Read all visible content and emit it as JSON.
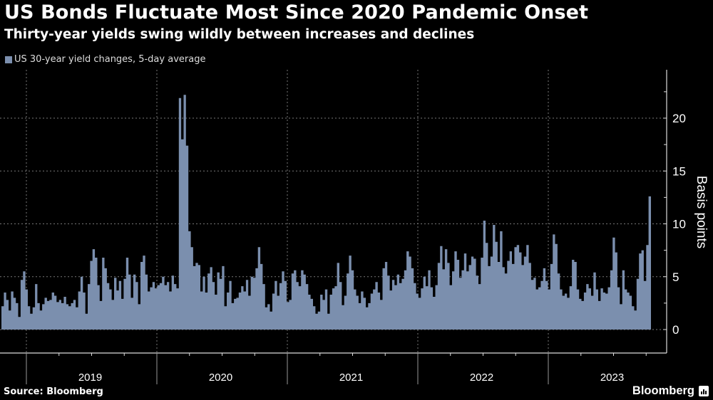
{
  "header": {
    "title": "US Bonds Fluctuate Most Since 2020 Pandemic Onset",
    "subtitle": "Thirty-year yields swing wildly between increases and declines"
  },
  "legend": {
    "label": "US 30-year yield changes, 5-day average",
    "color": "#7b8fae"
  },
  "footer": {
    "source": "Source: Bloomberg",
    "brand": "Bloomberg"
  },
  "chart_data": {
    "type": "area",
    "title": "US Bonds Fluctuate Most Since 2020 Pandemic Onset",
    "subtitle": "Thirty-year yields swing wildly between increases and declines",
    "xlabel": "",
    "ylabel": "Basis points",
    "y_axis_position": "right",
    "ylim": [
      -2.2,
      24.5
    ],
    "yticks": [
      0,
      5,
      10,
      15,
      20
    ],
    "xticks": [
      "2019",
      "2020",
      "2021",
      "2022",
      "2023"
    ],
    "grid": true,
    "legend_position": "top-left",
    "series": [
      {
        "name": "US 30-year yield changes, 5-day average",
        "color": "#7b8fae",
        "x_start": "2018-11",
        "x_end": "2023-10",
        "sampling": "approx. weekly (traced from figure)",
        "values": [
          2.2,
          3.5,
          2.8,
          1.8,
          3.6,
          3.0,
          2.5,
          1.2,
          4.7,
          5.5,
          3.8,
          2.2,
          1.5,
          2.1,
          4.3,
          2.5,
          1.8,
          2.4,
          3.0,
          2.7,
          2.8,
          3.5,
          3.2,
          2.6,
          2.8,
          2.5,
          3.1,
          2.4,
          2.2,
          2.5,
          2.8,
          2.1,
          3.6,
          5.0,
          3.5,
          1.5,
          4.3,
          6.5,
          7.6,
          6.8,
          4.2,
          2.7,
          6.8,
          5.8,
          4.4,
          3.8,
          2.8,
          4.9,
          3.7,
          4.6,
          2.9,
          4.8,
          6.8,
          5.2,
          3.0,
          5.2,
          4.5,
          2.4,
          6.4,
          7.0,
          5.2,
          3.6,
          4.0,
          4.5,
          3.9,
          4.2,
          4.4,
          5.0,
          4.2,
          4.5,
          3.6,
          5.1,
          4.3,
          3.9,
          21.9,
          18.0,
          22.2,
          17.4,
          9.3,
          7.8,
          6.0,
          6.3,
          6.1,
          3.6,
          5.0,
          3.5,
          5.3,
          5.9,
          4.5,
          3.3,
          5.4,
          4.8,
          6.0,
          2.2,
          3.5,
          4.6,
          2.5,
          2.9,
          3.0,
          3.5,
          4.1,
          3.6,
          4.7,
          3.2,
          5.0,
          4.9,
          5.8,
          7.8,
          6.2,
          4.3,
          2.1,
          2.4,
          1.7,
          3.4,
          4.6,
          3.2,
          4.4,
          5.5,
          4.6,
          2.6,
          2.8,
          5.3,
          5.6,
          4.5,
          4.1,
          5.6,
          5.2,
          4.3,
          3.3,
          2.9,
          2.2,
          1.5,
          1.7,
          3.3,
          2.8,
          3.8,
          1.5,
          3.3,
          3.9,
          4.1,
          6.3,
          4.5,
          2.3,
          3.2,
          5.3,
          7.0,
          5.6,
          3.8,
          3.2,
          2.5,
          3.6,
          3.0,
          2.1,
          2.5,
          3.4,
          3.8,
          4.5,
          3.5,
          2.8,
          5.8,
          6.4,
          5.1,
          3.7,
          4.7,
          4.2,
          5.2,
          4.4,
          4.8,
          5.6,
          7.4,
          6.9,
          5.8,
          4.4,
          3.4,
          3.0,
          3.9,
          5.0,
          4.1,
          5.6,
          4.0,
          3.1,
          4.2,
          6.3,
          7.9,
          5.7,
          7.6,
          6.3,
          4.2,
          5.5,
          7.4,
          6.6,
          4.9,
          5.6,
          7.2,
          5.5,
          6.1,
          6.9,
          6.7,
          5.1,
          4.3,
          6.8,
          10.3,
          8.2,
          6.0,
          6.9,
          9.9,
          8.3,
          6.4,
          9.3,
          5.9,
          5.3,
          6.5,
          7.4,
          6.2,
          7.8,
          8.0,
          7.3,
          6.1,
          6.9,
          8.0,
          6.3,
          4.7,
          4.9,
          3.8,
          4.0,
          4.6,
          5.8,
          4.6,
          3.8,
          6.2,
          9.0,
          8.1,
          5.3,
          3.8,
          3.2,
          3.4,
          3.0,
          4.1,
          6.6,
          6.4,
          3.8,
          2.9,
          2.7,
          3.5,
          4.3,
          3.9,
          3.2,
          5.4,
          3.8,
          2.7,
          3.9,
          3.5,
          3.4,
          4.0,
          5.6,
          8.7,
          7.3,
          4.0,
          2.4,
          5.6,
          3.8,
          3.5,
          3.2,
          2.2,
          1.8,
          4.8,
          7.2,
          7.5,
          4.6,
          8.0,
          12.6
        ]
      }
    ]
  }
}
